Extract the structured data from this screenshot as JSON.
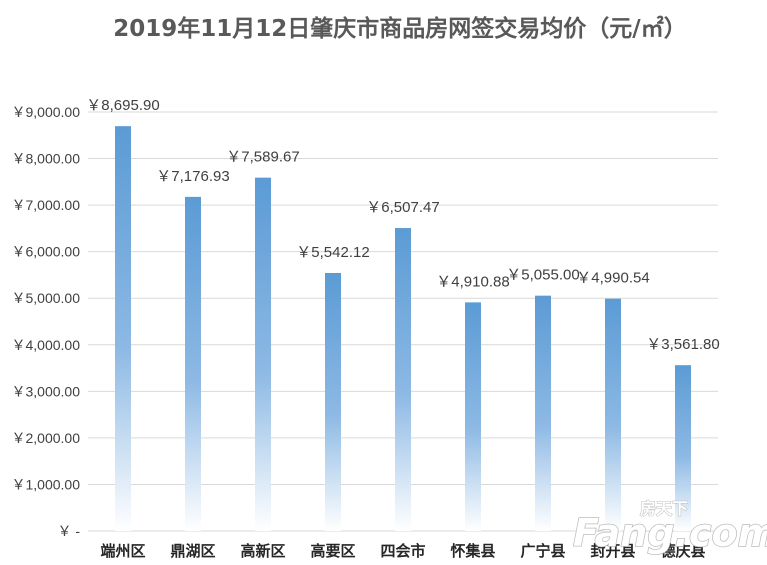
{
  "chart_data": {
    "type": "bar",
    "title": "2019年11月12日肇庆市商品房网签交易均价（元/㎡）",
    "categories": [
      "端州区",
      "鼎湖区",
      "高新区",
      "高要区",
      "四会市",
      "怀集县",
      "广宁县",
      "封开县",
      "德庆县"
    ],
    "series": [
      {
        "values": [
          8695.9,
          7176.93,
          7589.67,
          5542.12,
          6507.47,
          4910.88,
          5055.0,
          4990.54,
          3561.8
        ]
      }
    ],
    "data_labels": [
      "￥8,695.90",
      "￥7,176.93",
      "￥7,589.67",
      "￥5,542.12",
      "￥6,507.47",
      "￥4,910.88",
      "￥5,055.00",
      "￥4,990.54",
      "￥3,561.80"
    ],
    "y_ticks": [
      0,
      1000,
      2000,
      3000,
      4000,
      5000,
      6000,
      7000,
      8000,
      9000
    ],
    "y_tick_labels": [
      "￥ -",
      "￥1,000.00",
      "￥2,000.00",
      "￥3,000.00",
      "￥4,000.00",
      "￥5,000.00",
      "￥6,000.00",
      "￥7,000.00",
      "￥8,000.00",
      "￥9,000.00"
    ],
    "ylim": [
      0,
      9000
    ],
    "xlabel": "",
    "ylabel": "",
    "grid": true,
    "legend": "none",
    "bar_color": "#5b9bd5",
    "bar_fade_color": "#ffffff"
  },
  "watermark": {
    "small": "房天下",
    "big": "Fang.com"
  }
}
